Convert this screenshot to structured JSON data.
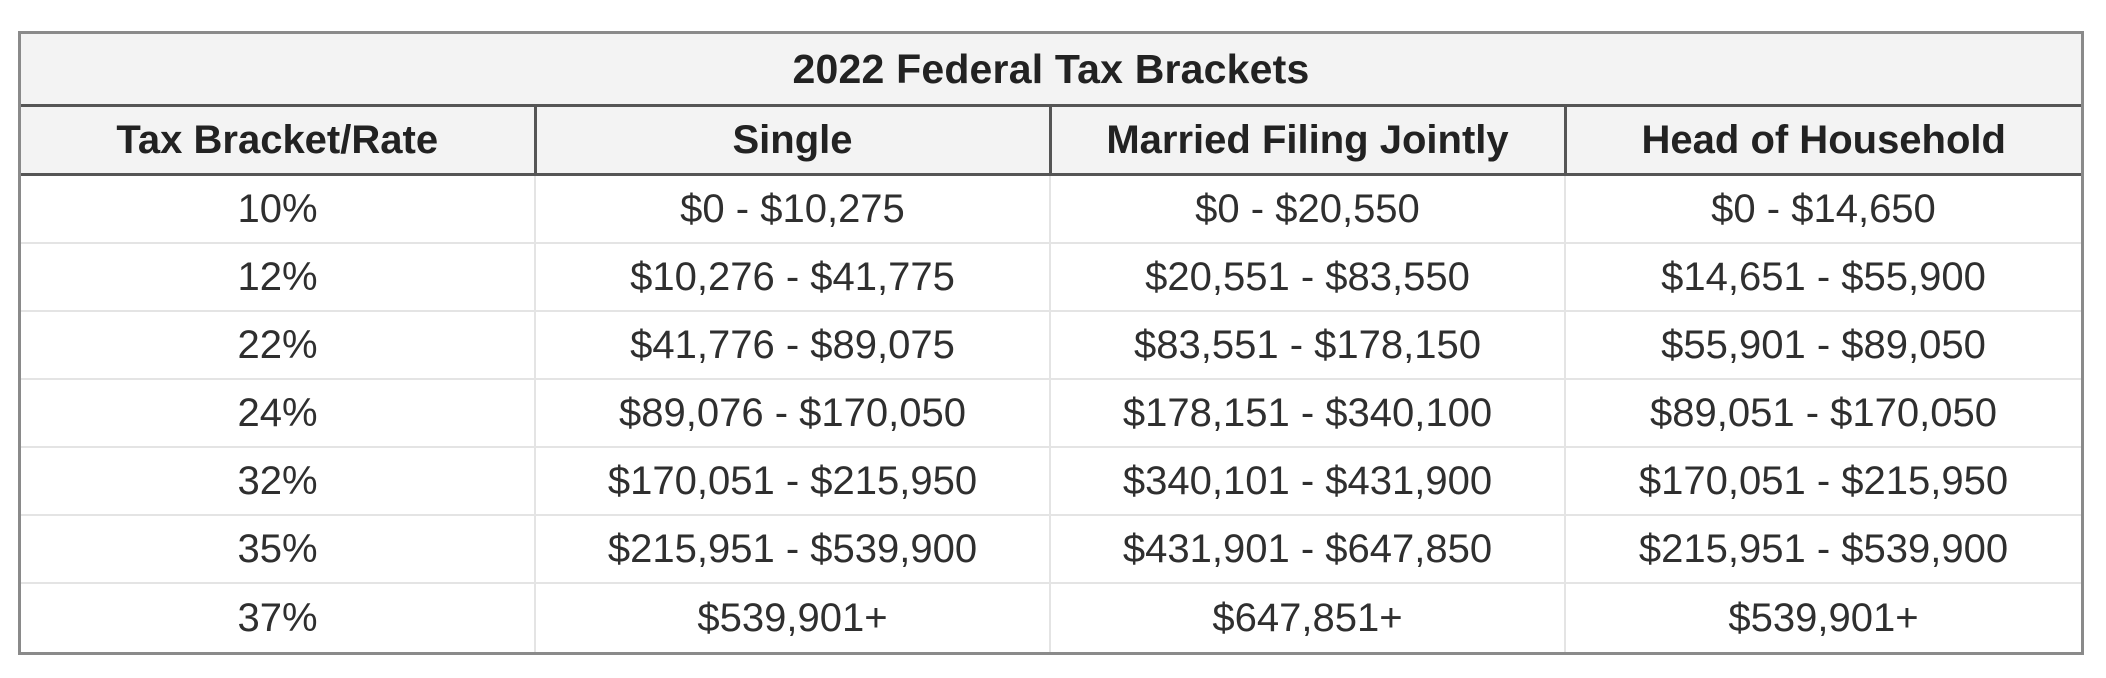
{
  "title": "2022 Federal Tax Brackets",
  "headers": [
    "Tax Bracket/Rate",
    "Single",
    "Married Filing Jointly",
    "Head of Household"
  ],
  "rows": [
    [
      "10%",
      "$0 - $10,275",
      "$0 - $20,550",
      "$0 - $14,650"
    ],
    [
      "12%",
      "$10,276 - $41,775",
      "$20,551 - $83,550",
      "$14,651 - $55,900"
    ],
    [
      "22%",
      "$41,776 - $89,075",
      "$83,551 - $178,150",
      "$55,901 - $89,050"
    ],
    [
      "24%",
      "$89,076 - $170,050",
      "$178,151 - $340,100",
      "$89,051 - $170,050"
    ],
    [
      "32%",
      "$170,051 - $215,950",
      "$340,101 - $431,900",
      "$170,051 - $215,950"
    ],
    [
      "35%",
      "$215,951 - $539,900",
      "$431,901 - $647,850",
      "$215,951 - $539,900"
    ],
    [
      "37%",
      "$539,901+",
      "$647,851+",
      "$539,901+"
    ]
  ],
  "colors": {
    "header_bg": "#f3f3f3",
    "outer_border": "#8a8a8a",
    "header_border": "#555555",
    "cell_border": "#e4e4e4"
  }
}
